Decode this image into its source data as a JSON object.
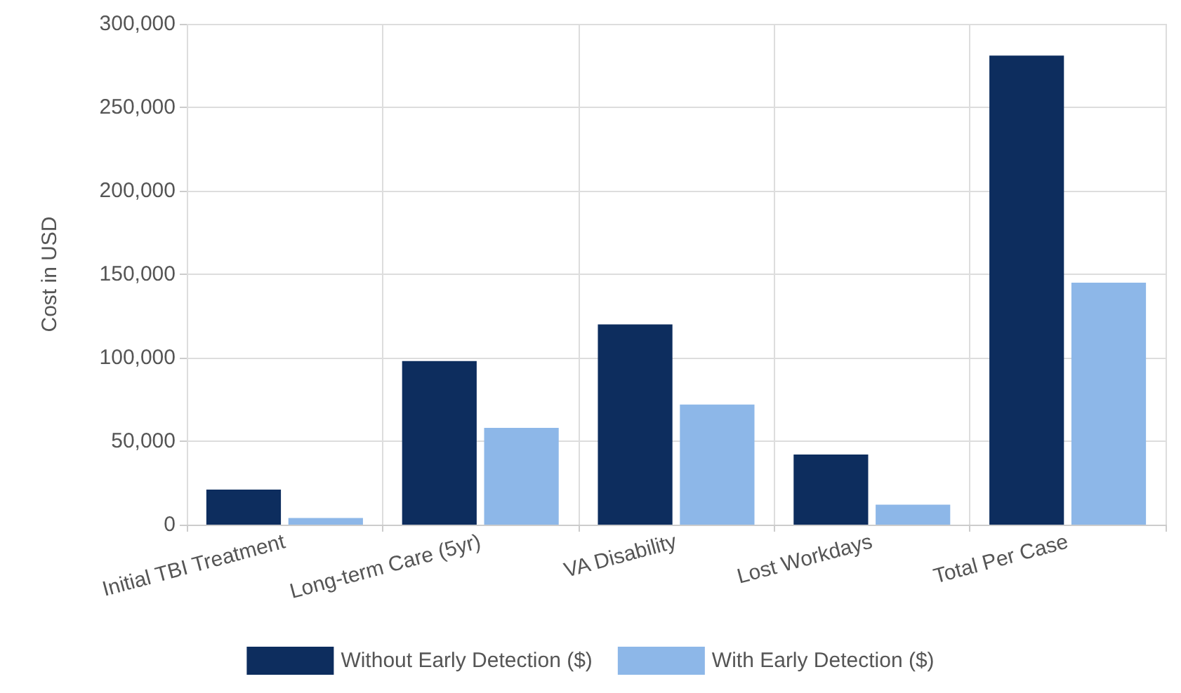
{
  "chart_data": {
    "type": "bar",
    "ylabel": "Cost in USD",
    "categories": [
      "Initial TBI Treatment",
      "Long-term Care (5yr)",
      "VA Disability",
      "Lost Workdays",
      "Total Per Case"
    ],
    "series": [
      {
        "name": "Without Early Detection ($)",
        "color": "#0d2d5e",
        "values": [
          21000,
          98000,
          120000,
          42000,
          281000
        ]
      },
      {
        "name": "With Early Detection ($)",
        "color": "#8db7e8",
        "values": [
          4000,
          58000,
          72000,
          12000,
          145000
        ]
      }
    ],
    "ylim": [
      0,
      300000
    ],
    "yticks": [
      0,
      {
        "value": 50000,
        "label": "50,000"
      },
      {
        "value": 100000,
        "label": "100,000"
      },
      {
        "value": 150000,
        "label": "150,000"
      },
      {
        "value": 200000,
        "label": "200,000"
      },
      {
        "value": 250000,
        "label": "250,000"
      },
      {
        "value": 300000,
        "label": "300,000"
      }
    ],
    "grid": true,
    "legend": "bottom"
  }
}
